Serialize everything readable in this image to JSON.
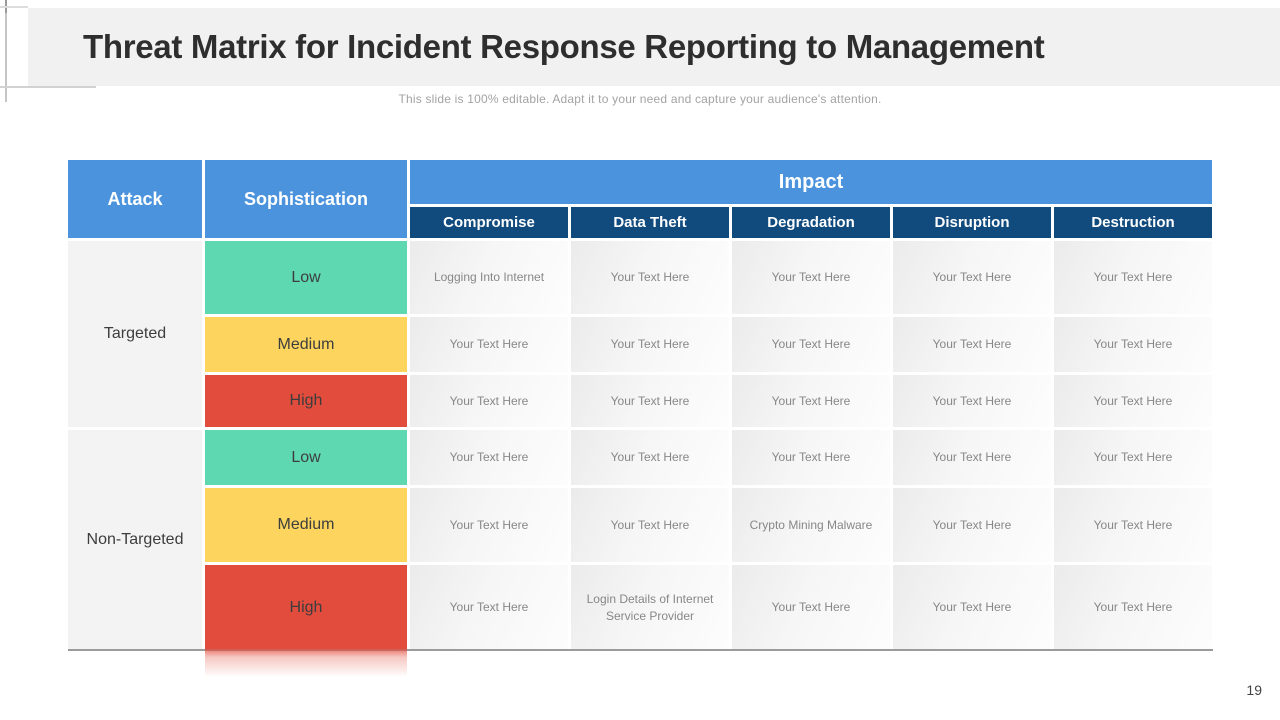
{
  "slide": {
    "title": "Threat Matrix for Incident Response Reporting to Management",
    "subtitle": "This slide is 100% editable. Adapt it to your need and capture your audience's attention.",
    "page_number": "19"
  },
  "colors": {
    "header_blue": "#4b94dd",
    "header_navy": "#114b7e",
    "level_low_teal": "#5ed8b1",
    "level_medium_yellow": "#fcd45e",
    "level_high_red": "#e24c3c",
    "title_band_gray": "#f1f1f1"
  },
  "table": {
    "attack_header": "Attack",
    "sophistication_header": "Sophistication",
    "impact_header": "Impact",
    "impact_columns": [
      "Compromise",
      "Data Theft",
      "Degradation",
      "Disruption",
      "Destruction"
    ],
    "groups": [
      {
        "label": "Targeted",
        "rows": [
          {
            "level": "Low",
            "cells": [
              "Logging Into Internet",
              "Your Text Here",
              "Your Text Here",
              "Your Text Here",
              "Your Text Here"
            ]
          },
          {
            "level": "Medium",
            "cells": [
              "Your Text Here",
              "Your Text Here",
              "Your Text Here",
              "Your Text Here",
              "Your Text Here"
            ]
          },
          {
            "level": "High",
            "cells": [
              "Your Text Here",
              "Your Text Here",
              "Your Text Here",
              "Your Text Here",
              "Your Text Here"
            ]
          }
        ]
      },
      {
        "label": "Non-Targeted",
        "rows": [
          {
            "level": "Low",
            "cells": [
              "Your Text Here",
              "Your Text Here",
              "Your Text Here",
              "Your Text Here",
              "Your Text Here"
            ]
          },
          {
            "level": "Medium",
            "cells": [
              "Your Text Here",
              "Your Text Here",
              "Crypto Mining Malware",
              "Your Text Here",
              "Your Text Here"
            ]
          },
          {
            "level": "High",
            "cells": [
              "Your Text Here",
              "Login Details of Internet Service Provider",
              "Your Text Here",
              "Your Text Here",
              "Your Text Here"
            ]
          }
        ]
      }
    ]
  }
}
